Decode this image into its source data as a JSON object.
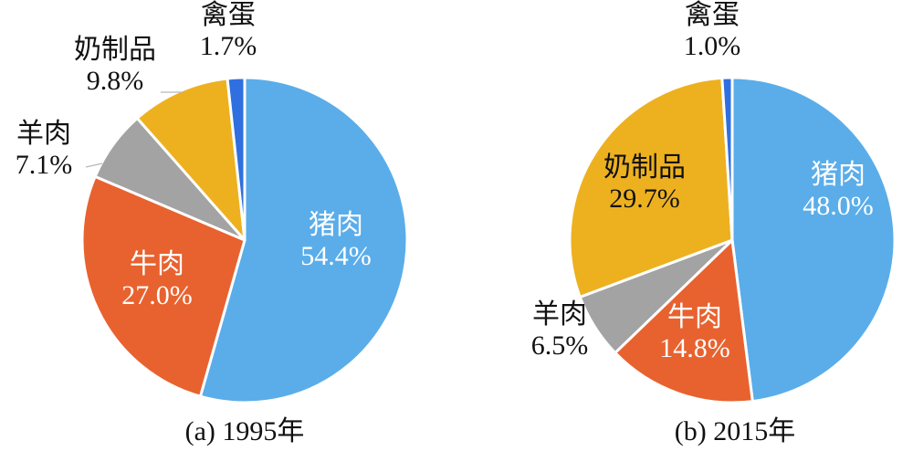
{
  "chart_data": [
    {
      "type": "pie",
      "caption": "(a) 1995年",
      "slices": [
        {
          "label": "猪肉",
          "value": 54.4,
          "value_text": "54.4%",
          "color": "#5aade9"
        },
        {
          "label": "牛肉",
          "value": 27.0,
          "value_text": "27.0%",
          "color": "#e8622f"
        },
        {
          "label": "羊肉",
          "value": 7.1,
          "value_text": "7.1%",
          "color": "#a3a3a3"
        },
        {
          "label": "奶制品",
          "value": 9.8,
          "value_text": "9.8%",
          "color": "#edb120"
        },
        {
          "label": "禽蛋",
          "value": 1.7,
          "value_text": "1.7%",
          "color": "#2f6fe0"
        }
      ]
    },
    {
      "type": "pie",
      "caption": "(b) 2015年",
      "slices": [
        {
          "label": "猪肉",
          "value": 48.0,
          "value_text": "48.0%",
          "color": "#5aade9"
        },
        {
          "label": "牛肉",
          "value": 14.8,
          "value_text": "14.8%",
          "color": "#e8622f"
        },
        {
          "label": "羊肉",
          "value": 6.5,
          "value_text": "6.5%",
          "color": "#a3a3a3"
        },
        {
          "label": "奶制品",
          "value": 29.7,
          "value_text": "29.7%",
          "color": "#edb120"
        },
        {
          "label": "禽蛋",
          "value": 1.0,
          "value_text": "1.0%",
          "color": "#2f6fe0"
        }
      ]
    }
  ]
}
